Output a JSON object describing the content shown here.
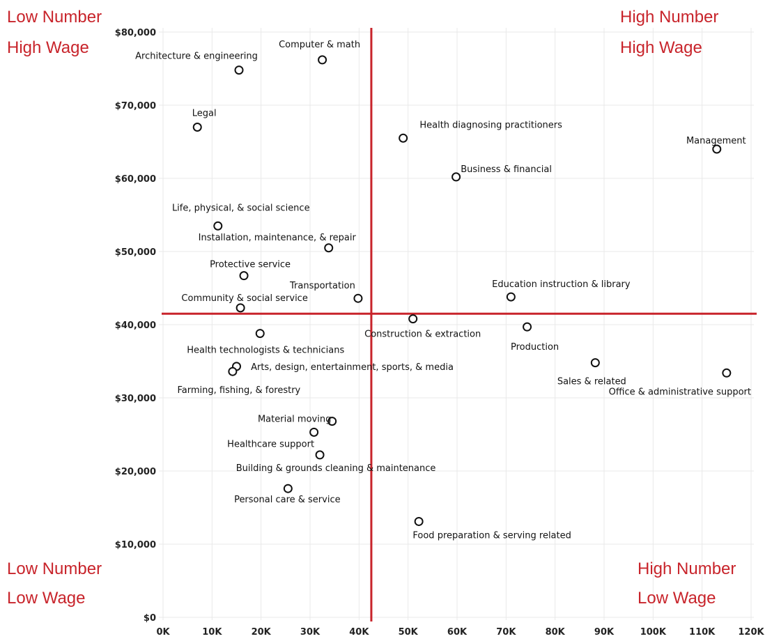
{
  "chart_data": {
    "type": "scatter",
    "xlim": [
      0,
      120000
    ],
    "ylim": [
      0,
      80000
    ],
    "x_ticks": [
      0,
      10000,
      20000,
      30000,
      40000,
      50000,
      60000,
      70000,
      80000,
      90000,
      100000,
      110000,
      120000
    ],
    "x_tick_labels": [
      "0K",
      "10K",
      "20K",
      "30K",
      "40K",
      "50K",
      "60K",
      "70K",
      "80K",
      "90K",
      "100K",
      "110K",
      "120K"
    ],
    "y_ticks": [
      0,
      10000,
      20000,
      30000,
      40000,
      50000,
      60000,
      70000,
      80000
    ],
    "y_tick_labels": [
      "$0",
      "$10,000",
      "$20,000",
      "$30,000",
      "$40,000",
      "$50,000",
      "$60,000",
      "$70,000",
      "$80,000"
    ],
    "grid": true,
    "reference_lines": {
      "x": 42500,
      "y": 41500,
      "color": "#c8242b"
    },
    "quadrant_labels": {
      "top_left": [
        "Low Number",
        "High Wage"
      ],
      "top_right": [
        "High Number",
        "High Wage"
      ],
      "bottom_left": [
        "Low Number",
        "Low Wage"
      ],
      "bottom_right": [
        "High Number",
        "Low Wage"
      ]
    },
    "points": [
      {
        "label": "Computer & math",
        "x": 32500,
        "y": 76200
      },
      {
        "label": "Architecture & engineering",
        "x": 15500,
        "y": 74800
      },
      {
        "label": "Legal",
        "x": 7000,
        "y": 67000
      },
      {
        "label": "Health diagnosing practitioners",
        "x": 49000,
        "y": 65500
      },
      {
        "label": "Management",
        "x": 113000,
        "y": 64000
      },
      {
        "label": "Business & financial",
        "x": 59800,
        "y": 60200
      },
      {
        "label": "Life, physical, & social science",
        "x": 11200,
        "y": 53500
      },
      {
        "label": "Installation, maintenance, & repair",
        "x": 33800,
        "y": 50500
      },
      {
        "label": "Protective service",
        "x": 16500,
        "y": 46700
      },
      {
        "label": "Transportation",
        "x": 39800,
        "y": 43600
      },
      {
        "label": "Education instruction & library",
        "x": 71000,
        "y": 43800
      },
      {
        "label": "Community & social service",
        "x": 15800,
        "y": 42300
      },
      {
        "label": "Construction & extraction",
        "x": 51000,
        "y": 40800
      },
      {
        "label": "Production",
        "x": 74300,
        "y": 39700
      },
      {
        "label": "Health technologists & technicians",
        "x": 19800,
        "y": 38800
      },
      {
        "label": "Sales & related",
        "x": 88200,
        "y": 34800
      },
      {
        "label": "Office & administrative support",
        "x": 115000,
        "y": 33400
      },
      {
        "label": "Arts, design, entertainment, sports, & media",
        "x": 15000,
        "y": 34300
      },
      {
        "label": "Farming, fishing, & forestry",
        "x": 14200,
        "y": 33600
      },
      {
        "label": "Material moving",
        "x": 34500,
        "y": 26800
      },
      {
        "label": "Healthcare support",
        "x": 30800,
        "y": 25300
      },
      {
        "label": "Building & grounds cleaning & maintenance",
        "x": 32000,
        "y": 22200
      },
      {
        "label": "Personal care & service",
        "x": 25500,
        "y": 17600
      },
      {
        "label": "Food preparation & serving related",
        "x": 52200,
        "y": 13100
      }
    ]
  }
}
